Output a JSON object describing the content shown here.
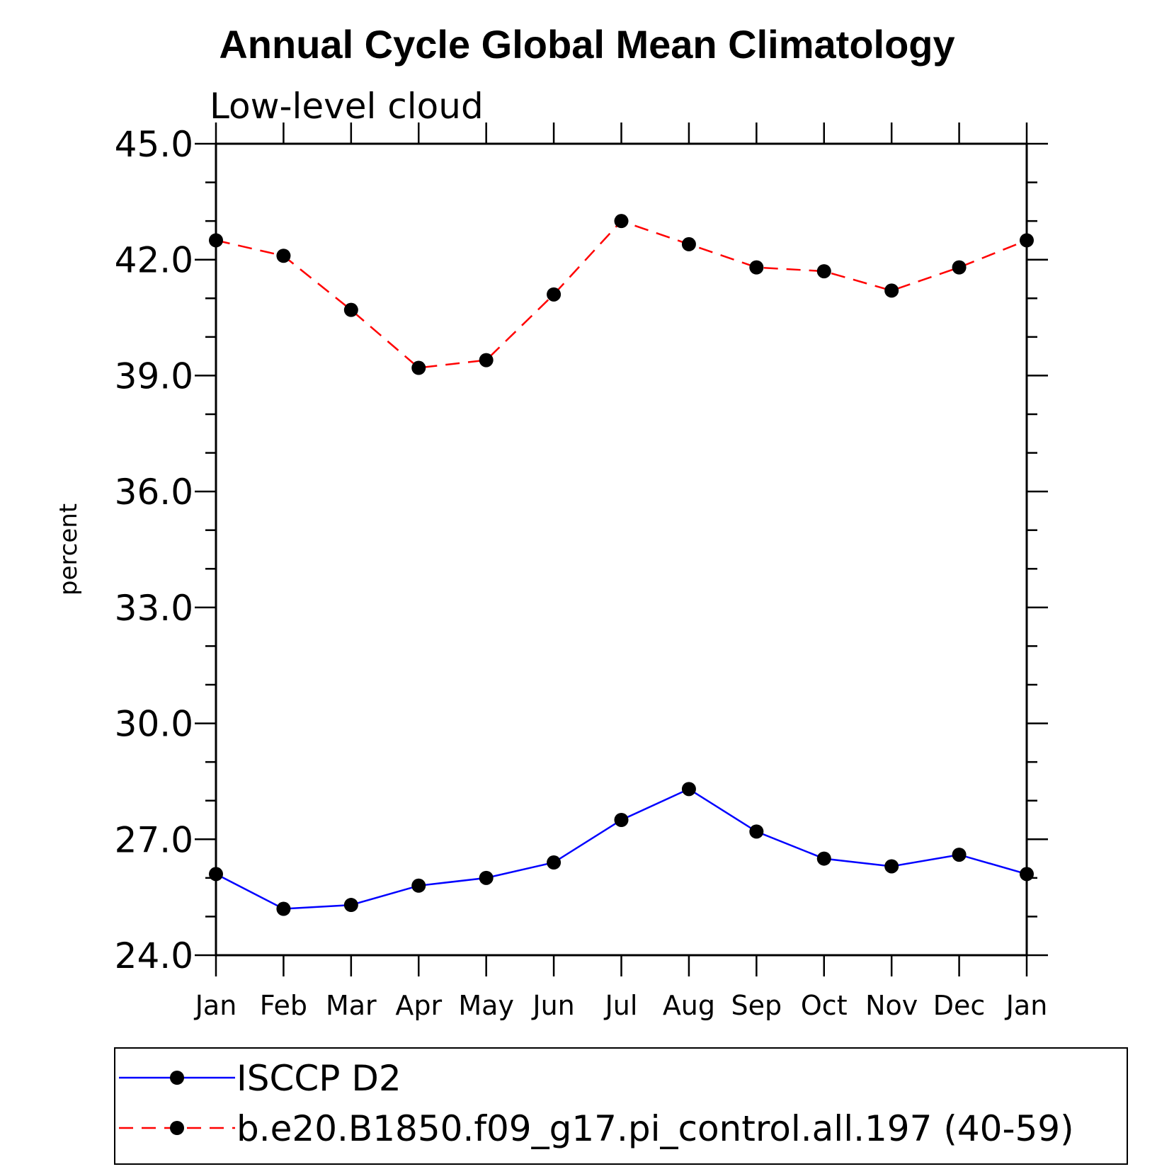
{
  "chart_data": {
    "type": "line",
    "title": "Annual Cycle Global Mean Climatology",
    "subtitle": "Low-level cloud",
    "xlabel": "",
    "ylabel": "percent",
    "ylim": [
      24.0,
      45.0
    ],
    "yticks": [
      "24.0",
      "27.0",
      "30.0",
      "33.0",
      "36.0",
      "39.0",
      "42.0",
      "45.0"
    ],
    "categories": [
      "Jan",
      "Feb",
      "Mar",
      "Apr",
      "May",
      "Jun",
      "Jul",
      "Aug",
      "Sep",
      "Oct",
      "Nov",
      "Dec",
      "Jan"
    ],
    "grid": false,
    "legend_position": "bottom",
    "series": [
      {
        "name": "ISCCP D2",
        "color": "#0000ff",
        "dashed": false,
        "values": [
          26.1,
          25.2,
          25.3,
          25.8,
          26.0,
          26.4,
          27.5,
          28.3,
          27.2,
          26.5,
          26.3,
          26.6,
          26.1
        ]
      },
      {
        "name": "b.e20.B1850.f09_g17.pi_control.all.197 (40-59)",
        "color": "#ff0000",
        "dashed": true,
        "values": [
          42.5,
          42.1,
          40.7,
          39.2,
          39.4,
          41.1,
          43.0,
          42.4,
          41.8,
          41.7,
          41.2,
          41.8,
          42.5
        ]
      }
    ]
  }
}
